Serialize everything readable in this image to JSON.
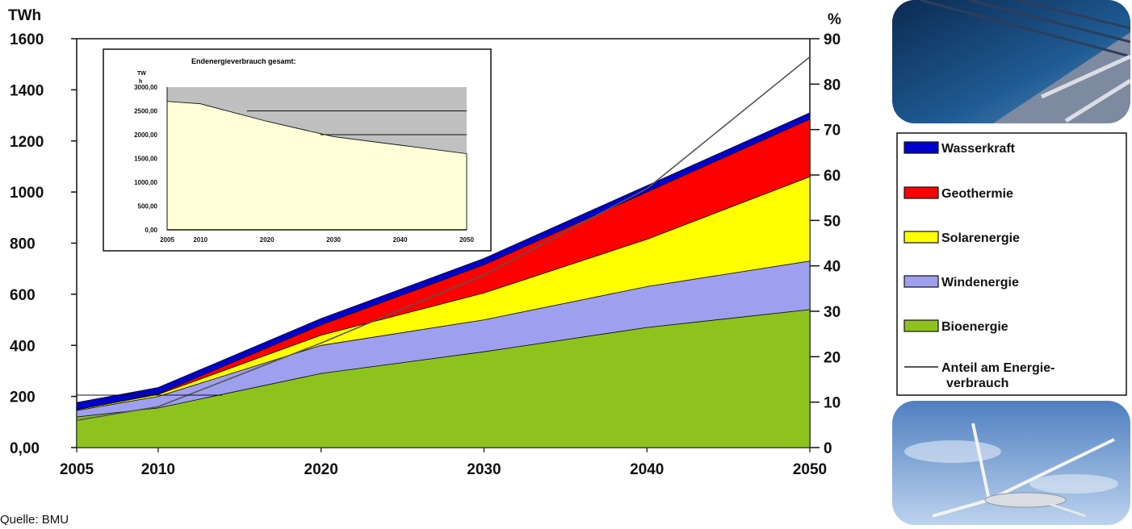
{
  "chart_data": {
    "type": "area",
    "stacked": true,
    "x": [
      2005,
      2010,
      2020,
      2030,
      2040,
      2050
    ],
    "x_tick_labels": [
      "2005",
      "2010",
      "2020",
      "2030",
      "2040",
      "2050"
    ],
    "left_axis": {
      "unit_label": "TWh",
      "ylim": [
        0,
        1600
      ],
      "tick_labels": [
        "0,00",
        "200",
        "400",
        "600",
        "800",
        "1000",
        "1200",
        "1400",
        "1600"
      ],
      "tick_values": [
        0,
        200,
        400,
        600,
        800,
        1000,
        1200,
        1400,
        1600
      ]
    },
    "right_axis": {
      "unit_label": "%",
      "ylim": [
        0,
        90
      ],
      "tick_labels": [
        "0",
        "10",
        "20",
        "30",
        "40",
        "50",
        "60",
        "70",
        "80",
        "90"
      ],
      "tick_values": [
        0,
        10,
        20,
        30,
        40,
        50,
        60,
        70,
        80,
        90
      ]
    },
    "series": [
      {
        "name": "Bioenergie",
        "color": "#8ec31e",
        "values": [
          120,
          155,
          290,
          375,
          470,
          540
        ]
      },
      {
        "name": "Windenergie",
        "color": "#9f9ff0",
        "values": [
          25,
          45,
          110,
          125,
          160,
          190
        ]
      },
      {
        "name": "Solarenergie",
        "color": "#ffff00",
        "values": [
          3,
          8,
          40,
          105,
          185,
          330
        ]
      },
      {
        "name": "Geothermie",
        "color": "#ff0000",
        "values": [
          1,
          2,
          40,
          110,
          185,
          225
        ]
      },
      {
        "name": "Wasserkraft",
        "color": "#0000cc",
        "values": [
          27,
          25,
          25,
          25,
          25,
          25
        ]
      }
    ],
    "line_series": {
      "name": "Anteil am Energie- verbrauch",
      "axis": "right",
      "color": "#555555",
      "values": [
        6,
        9,
        23,
        38,
        57,
        86
      ]
    },
    "legend": {
      "placement": "right",
      "items": [
        {
          "label": "Wasserkraft",
          "kind": "swatch",
          "color": "#0000cc"
        },
        {
          "label": "Geothermie",
          "kind": "swatch",
          "color": "#ff0000"
        },
        {
          "label": "Solarenergie",
          "kind": "swatch",
          "color": "#ffff00"
        },
        {
          "label": "Windenergie",
          "kind": "swatch",
          "color": "#9f9ff0"
        },
        {
          "label": "Bioenergie",
          "kind": "swatch",
          "color": "#8ec31e"
        },
        {
          "label": "Anteil am Energie-",
          "label2": "verbrauch",
          "kind": "line",
          "color": "#555555"
        }
      ]
    },
    "grid": false,
    "inset": {
      "type": "area",
      "title": "Endenergieverbrauch gesamt:",
      "unit_label_1": "TW",
      "unit_label_2": "h",
      "x": [
        2005,
        2010,
        2020,
        2030,
        2040,
        2050
      ],
      "x_tick_labels": [
        "2005",
        "2010",
        "2020",
        "2030",
        "2040",
        "2050"
      ],
      "ylim": [
        0,
        3000
      ],
      "tick_labels": [
        "0,00",
        "500,00",
        "1000,00",
        "1500,00",
        "2000,00",
        "2500,00",
        "3000,00"
      ],
      "tick_values": [
        0,
        500,
        1000,
        1500,
        2000,
        2500,
        3000
      ],
      "background_color": "#c0c0c0",
      "fill_color": "#ffffd8",
      "values": [
        2700,
        2650,
        2280,
        1960,
        1780,
        1600
      ],
      "reference_lines": [
        2500,
        2000
      ]
    }
  },
  "source_text": "Quelle: BMU",
  "images": [
    {
      "name": "solar-collector-photo"
    },
    {
      "name": "wind-turbine-photo"
    }
  ]
}
